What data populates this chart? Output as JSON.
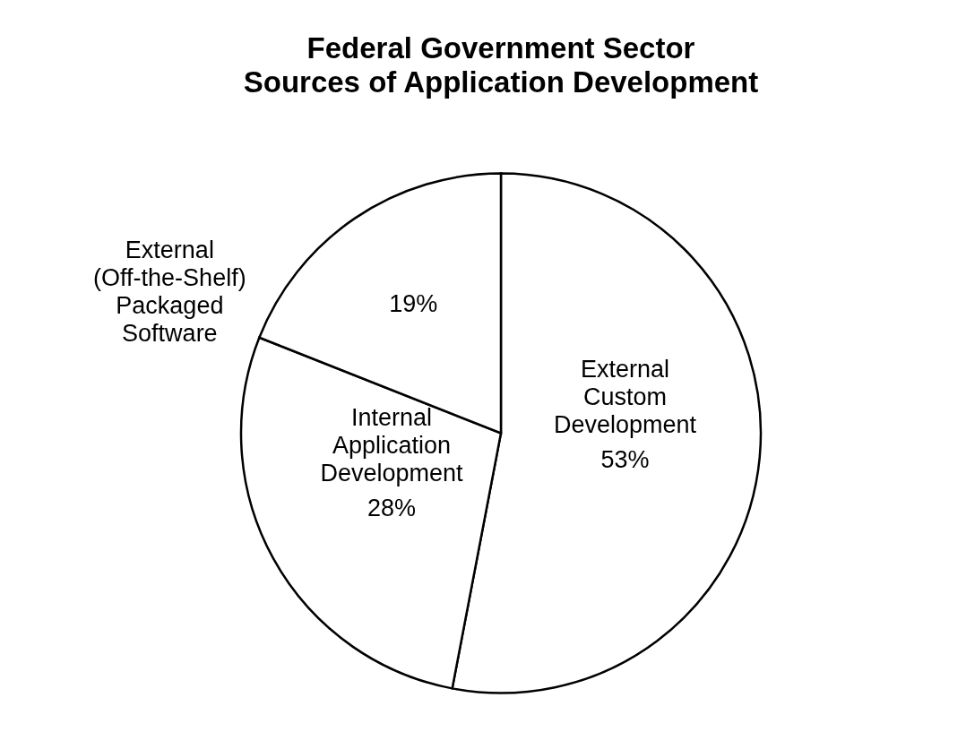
{
  "chart_data": {
    "type": "pie",
    "title": "Federal Government Sector\nSources of Application Development",
    "categories": [
      "External Custom Development",
      "Internal Application Development",
      "External (Off-the-Shelf) Packaged Software"
    ],
    "values": [
      53,
      28,
      19
    ],
    "colors": [
      "#ffffff",
      "#ffffff",
      "#ffffff"
    ],
    "value_labels": [
      "53%",
      "28%",
      "19%"
    ],
    "legend": false
  }
}
